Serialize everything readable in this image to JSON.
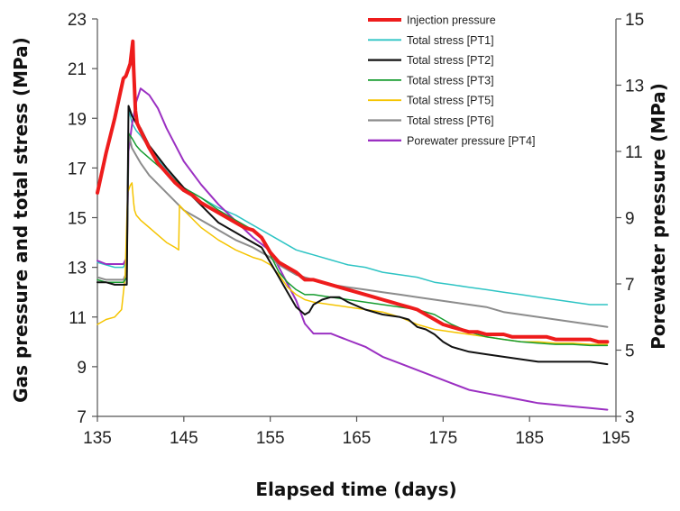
{
  "chart_data": {
    "type": "line",
    "title": "",
    "xlabel": "Elapsed time (days)",
    "ylabel_left": "Gas pressure and total stress (MPa)",
    "ylabel_right": "Porewater pressure (MPa)",
    "xlim": [
      135,
      195
    ],
    "ylim_left": [
      7,
      23
    ],
    "ylim_right": [
      3,
      15
    ],
    "x_ticks": [
      135,
      145,
      155,
      165,
      175,
      185,
      195
    ],
    "y_left_ticks": [
      7,
      9,
      11,
      13,
      15,
      17,
      19,
      21,
      23
    ],
    "y_right_ticks": [
      3,
      5,
      7,
      9,
      11,
      13,
      15
    ],
    "grid": false,
    "legend_position": "top-right",
    "series": [
      {
        "name": "Injection pressure",
        "color": "#ee1c1c",
        "width": 4,
        "axis": "left",
        "x": [
          135,
          136,
          137,
          137.5,
          138,
          138.3,
          138.6,
          138.8,
          139.0,
          139.1,
          139.2,
          139.4,
          139.6,
          140,
          141,
          142,
          143,
          144,
          145,
          146,
          147,
          148,
          149,
          150,
          151,
          152,
          153,
          154,
          155,
          156,
          157,
          158,
          159,
          160,
          161,
          162,
          163,
          164,
          165,
          166,
          167,
          168,
          169,
          170,
          171,
          172,
          173,
          174,
          175,
          176,
          177,
          178,
          179,
          180,
          181,
          182,
          183,
          184,
          185,
          186,
          187,
          188,
          189,
          190,
          191,
          192,
          193,
          194
        ],
        "y": [
          16.0,
          17.6,
          19.0,
          19.8,
          20.6,
          20.7,
          21.0,
          21.2,
          21.8,
          22.1,
          21.0,
          19.3,
          18.8,
          18.5,
          17.8,
          17.2,
          16.8,
          16.4,
          16.1,
          15.9,
          15.6,
          15.4,
          15.2,
          15.0,
          14.8,
          14.6,
          14.5,
          14.2,
          13.6,
          13.2,
          13.0,
          12.8,
          12.5,
          12.5,
          12.4,
          12.3,
          12.2,
          12.1,
          12.0,
          11.9,
          11.8,
          11.7,
          11.6,
          11.5,
          11.4,
          11.3,
          11.1,
          10.9,
          10.7,
          10.6,
          10.5,
          10.4,
          10.4,
          10.3,
          10.3,
          10.3,
          10.2,
          10.2,
          10.2,
          10.2,
          10.2,
          10.1,
          10.1,
          10.1,
          10.1,
          10.1,
          10.0,
          10.0
        ]
      },
      {
        "name": "Total stress [PT1]",
        "color": "#2ec4c4",
        "width": 1.5,
        "axis": "left",
        "x": [
          135,
          136,
          137,
          138,
          138.4,
          138.6,
          139.0,
          139.5,
          140,
          141,
          143,
          145,
          147,
          149,
          151,
          153,
          154,
          155,
          156,
          157,
          158,
          159,
          160,
          162,
          164,
          166,
          168,
          170,
          172,
          174,
          176,
          178,
          180,
          182,
          184,
          186,
          188,
          190,
          192,
          194
        ],
        "y": [
          13.2,
          13.1,
          13.0,
          13.0,
          13.3,
          19.4,
          18.8,
          18.5,
          18.3,
          17.8,
          16.9,
          16.2,
          15.8,
          15.4,
          15.1,
          14.7,
          14.5,
          14.3,
          14.1,
          13.9,
          13.7,
          13.6,
          13.5,
          13.3,
          13.1,
          13.0,
          12.8,
          12.7,
          12.6,
          12.4,
          12.3,
          12.2,
          12.1,
          12.0,
          11.9,
          11.8,
          11.7,
          11.6,
          11.5,
          11.5
        ]
      },
      {
        "name": "Total stress [PT2]",
        "color": "#111111",
        "width": 2,
        "axis": "left",
        "x": [
          135,
          136,
          137,
          138,
          138.4,
          138.6,
          139.0,
          139.5,
          140,
          141,
          143,
          145,
          147,
          149,
          151,
          152,
          153,
          154,
          155,
          156,
          157,
          158,
          159,
          159.5,
          160,
          161,
          162,
          163,
          164,
          166,
          168,
          170,
          171,
          172,
          173,
          174,
          175,
          176,
          177,
          178,
          180,
          182,
          184,
          186,
          188,
          190,
          192,
          194
        ],
        "y": [
          12.4,
          12.4,
          12.3,
          12.3,
          12.3,
          19.5,
          19.1,
          18.8,
          18.6,
          17.9,
          17.0,
          16.2,
          15.5,
          14.8,
          14.4,
          14.2,
          14.0,
          13.8,
          13.2,
          12.6,
          12.0,
          11.4,
          11.1,
          11.2,
          11.5,
          11.7,
          11.8,
          11.8,
          11.6,
          11.3,
          11.1,
          11.0,
          10.9,
          10.6,
          10.5,
          10.3,
          10.0,
          9.8,
          9.7,
          9.6,
          9.5,
          9.4,
          9.3,
          9.2,
          9.2,
          9.2,
          9.2,
          9.1
        ]
      },
      {
        "name": "Total stress [PT3]",
        "color": "#169c2f",
        "width": 1.5,
        "axis": "left",
        "x": [
          135,
          136,
          137,
          138,
          138.4,
          138.6,
          139.0,
          139.5,
          140,
          141,
          143,
          145,
          147,
          149,
          151,
          153,
          154,
          155,
          156,
          157,
          158,
          159,
          160,
          162,
          164,
          166,
          168,
          170,
          172,
          174,
          176,
          178,
          180,
          182,
          184,
          186,
          188,
          190,
          192,
          194
        ],
        "y": [
          12.5,
          12.4,
          12.4,
          12.4,
          12.6,
          18.4,
          18.2,
          17.9,
          17.7,
          17.4,
          16.8,
          16.2,
          15.8,
          15.3,
          14.9,
          14.5,
          14.2,
          13.5,
          12.8,
          12.4,
          12.1,
          11.9,
          11.9,
          11.8,
          11.7,
          11.6,
          11.5,
          11.4,
          11.3,
          11.1,
          10.7,
          10.4,
          10.2,
          10.1,
          10.0,
          9.95,
          9.9,
          9.9,
          9.85,
          9.85
        ]
      },
      {
        "name": "Total stress [PT5]",
        "color": "#f5c400",
        "width": 1.5,
        "axis": "left",
        "x": [
          135,
          136,
          137,
          137.8,
          138.2,
          138.5,
          138.8,
          139.0,
          139.2,
          139.3,
          139.5,
          140,
          141,
          142,
          143,
          144,
          144.4,
          144.5,
          145,
          147,
          149,
          151,
          153,
          154,
          155,
          156,
          157,
          158,
          159,
          160,
          162,
          164,
          166,
          168,
          170,
          172,
          174,
          176,
          178,
          180,
          182,
          184,
          186,
          188,
          190,
          192,
          194
        ],
        "y": [
          10.7,
          10.9,
          11.0,
          11.3,
          12.6,
          16.0,
          16.3,
          16.4,
          15.6,
          15.3,
          15.1,
          14.9,
          14.6,
          14.3,
          14.0,
          13.8,
          13.7,
          15.5,
          15.3,
          14.6,
          14.1,
          13.7,
          13.4,
          13.3,
          13.1,
          12.7,
          12.2,
          11.9,
          11.7,
          11.6,
          11.5,
          11.4,
          11.3,
          11.2,
          11.0,
          10.7,
          10.5,
          10.4,
          10.3,
          10.2,
          10.1,
          10.0,
          10.0,
          9.95,
          9.95,
          9.9,
          9.9
        ]
      },
      {
        "name": "Total stress [PT6]",
        "color": "#8c8c8c",
        "width": 2,
        "axis": "left",
        "x": [
          135,
          136,
          137,
          138,
          138.4,
          138.6,
          139.0,
          139.5,
          140,
          141,
          143,
          145,
          147,
          149,
          151,
          153,
          154,
          155,
          156,
          157,
          158,
          160,
          162,
          164,
          166,
          168,
          170,
          172,
          174,
          176,
          178,
          180,
          182,
          184,
          186,
          188,
          190,
          192,
          194
        ],
        "y": [
          12.6,
          12.5,
          12.5,
          12.5,
          12.8,
          18.4,
          17.8,
          17.5,
          17.2,
          16.7,
          16.0,
          15.3,
          14.9,
          14.5,
          14.1,
          13.8,
          13.6,
          13.4,
          13.1,
          12.9,
          12.7,
          12.5,
          12.3,
          12.2,
          12.1,
          12.0,
          11.9,
          11.8,
          11.7,
          11.6,
          11.5,
          11.4,
          11.2,
          11.1,
          11.0,
          10.9,
          10.8,
          10.7,
          10.6
        ]
      },
      {
        "name": "Porewater pressure [PT4]",
        "color": "#9b30c2",
        "width": 2,
        "axis": "right",
        "x": [
          135,
          136,
          137,
          138,
          138.4,
          138.6,
          139,
          139.5,
          140,
          141,
          142,
          143,
          145,
          147,
          149,
          151,
          153,
          155,
          156,
          157,
          158,
          159,
          160,
          161,
          162,
          163,
          164,
          166,
          168,
          170,
          172,
          174,
          176,
          178,
          180,
          182,
          184,
          186,
          188,
          190,
          192,
          194
        ],
        "y": [
          7.7,
          7.6,
          7.6,
          7.6,
          7.8,
          11.0,
          11.8,
          12.5,
          12.9,
          12.7,
          12.3,
          11.7,
          10.7,
          10.0,
          9.4,
          8.9,
          8.4,
          8.0,
          7.5,
          7.0,
          6.5,
          5.8,
          5.5,
          5.5,
          5.5,
          5.4,
          5.3,
          5.1,
          4.8,
          4.6,
          4.4,
          4.2,
          4.0,
          3.8,
          3.7,
          3.6,
          3.5,
          3.4,
          3.35,
          3.3,
          3.25,
          3.2
        ]
      }
    ]
  }
}
